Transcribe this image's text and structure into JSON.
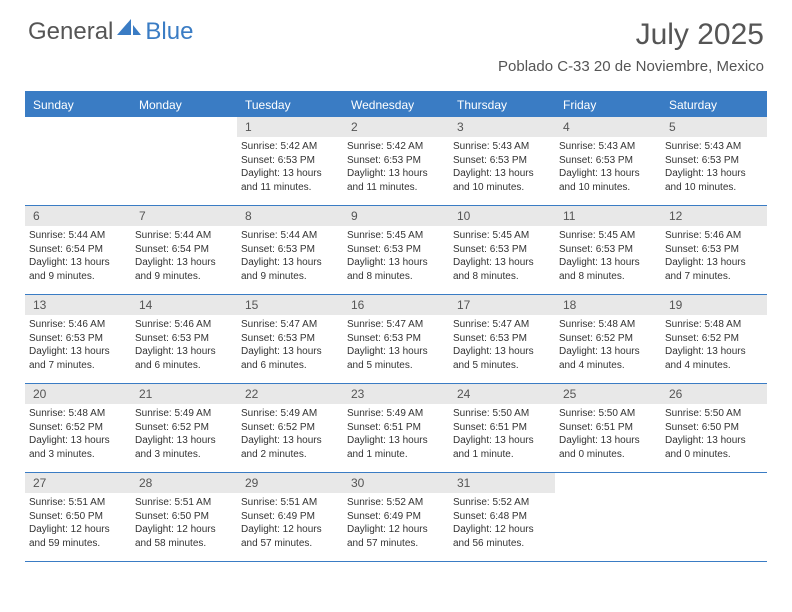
{
  "logo": {
    "general": "General",
    "blue": "Blue"
  },
  "title": "July 2025",
  "subtitle": "Poblado C-33 20 de Noviembre, Mexico",
  "colors": {
    "brand": "#3a7cc4",
    "headerText": "#555555",
    "daynumBg": "#e8e8e8",
    "infoText": "#333333",
    "bg": "#ffffff"
  },
  "dayNames": [
    "Sunday",
    "Monday",
    "Tuesday",
    "Wednesday",
    "Thursday",
    "Friday",
    "Saturday"
  ],
  "leadingBlanks": 2,
  "days": [
    {
      "n": 1,
      "sunrise": "5:42 AM",
      "sunset": "6:53 PM",
      "daylight": "13 hours and 11 minutes."
    },
    {
      "n": 2,
      "sunrise": "5:42 AM",
      "sunset": "6:53 PM",
      "daylight": "13 hours and 11 minutes."
    },
    {
      "n": 3,
      "sunrise": "5:43 AM",
      "sunset": "6:53 PM",
      "daylight": "13 hours and 10 minutes."
    },
    {
      "n": 4,
      "sunrise": "5:43 AM",
      "sunset": "6:53 PM",
      "daylight": "13 hours and 10 minutes."
    },
    {
      "n": 5,
      "sunrise": "5:43 AM",
      "sunset": "6:53 PM",
      "daylight": "13 hours and 10 minutes."
    },
    {
      "n": 6,
      "sunrise": "5:44 AM",
      "sunset": "6:54 PM",
      "daylight": "13 hours and 9 minutes."
    },
    {
      "n": 7,
      "sunrise": "5:44 AM",
      "sunset": "6:54 PM",
      "daylight": "13 hours and 9 minutes."
    },
    {
      "n": 8,
      "sunrise": "5:44 AM",
      "sunset": "6:53 PM",
      "daylight": "13 hours and 9 minutes."
    },
    {
      "n": 9,
      "sunrise": "5:45 AM",
      "sunset": "6:53 PM",
      "daylight": "13 hours and 8 minutes."
    },
    {
      "n": 10,
      "sunrise": "5:45 AM",
      "sunset": "6:53 PM",
      "daylight": "13 hours and 8 minutes."
    },
    {
      "n": 11,
      "sunrise": "5:45 AM",
      "sunset": "6:53 PM",
      "daylight": "13 hours and 8 minutes."
    },
    {
      "n": 12,
      "sunrise": "5:46 AM",
      "sunset": "6:53 PM",
      "daylight": "13 hours and 7 minutes."
    },
    {
      "n": 13,
      "sunrise": "5:46 AM",
      "sunset": "6:53 PM",
      "daylight": "13 hours and 7 minutes."
    },
    {
      "n": 14,
      "sunrise": "5:46 AM",
      "sunset": "6:53 PM",
      "daylight": "13 hours and 6 minutes."
    },
    {
      "n": 15,
      "sunrise": "5:47 AM",
      "sunset": "6:53 PM",
      "daylight": "13 hours and 6 minutes."
    },
    {
      "n": 16,
      "sunrise": "5:47 AM",
      "sunset": "6:53 PM",
      "daylight": "13 hours and 5 minutes."
    },
    {
      "n": 17,
      "sunrise": "5:47 AM",
      "sunset": "6:53 PM",
      "daylight": "13 hours and 5 minutes."
    },
    {
      "n": 18,
      "sunrise": "5:48 AM",
      "sunset": "6:52 PM",
      "daylight": "13 hours and 4 minutes."
    },
    {
      "n": 19,
      "sunrise": "5:48 AM",
      "sunset": "6:52 PM",
      "daylight": "13 hours and 4 minutes."
    },
    {
      "n": 20,
      "sunrise": "5:48 AM",
      "sunset": "6:52 PM",
      "daylight": "13 hours and 3 minutes."
    },
    {
      "n": 21,
      "sunrise": "5:49 AM",
      "sunset": "6:52 PM",
      "daylight": "13 hours and 3 minutes."
    },
    {
      "n": 22,
      "sunrise": "5:49 AM",
      "sunset": "6:52 PM",
      "daylight": "13 hours and 2 minutes."
    },
    {
      "n": 23,
      "sunrise": "5:49 AM",
      "sunset": "6:51 PM",
      "daylight": "13 hours and 1 minute."
    },
    {
      "n": 24,
      "sunrise": "5:50 AM",
      "sunset": "6:51 PM",
      "daylight": "13 hours and 1 minute."
    },
    {
      "n": 25,
      "sunrise": "5:50 AM",
      "sunset": "6:51 PM",
      "daylight": "13 hours and 0 minutes."
    },
    {
      "n": 26,
      "sunrise": "5:50 AM",
      "sunset": "6:50 PM",
      "daylight": "13 hours and 0 minutes."
    },
    {
      "n": 27,
      "sunrise": "5:51 AM",
      "sunset": "6:50 PM",
      "daylight": "12 hours and 59 minutes."
    },
    {
      "n": 28,
      "sunrise": "5:51 AM",
      "sunset": "6:50 PM",
      "daylight": "12 hours and 58 minutes."
    },
    {
      "n": 29,
      "sunrise": "5:51 AM",
      "sunset": "6:49 PM",
      "daylight": "12 hours and 57 minutes."
    },
    {
      "n": 30,
      "sunrise": "5:52 AM",
      "sunset": "6:49 PM",
      "daylight": "12 hours and 57 minutes."
    },
    {
      "n": 31,
      "sunrise": "5:52 AM",
      "sunset": "6:48 PM",
      "daylight": "12 hours and 56 minutes."
    }
  ],
  "labels": {
    "sunrise": "Sunrise:",
    "sunset": "Sunset:",
    "daylight": "Daylight:"
  }
}
